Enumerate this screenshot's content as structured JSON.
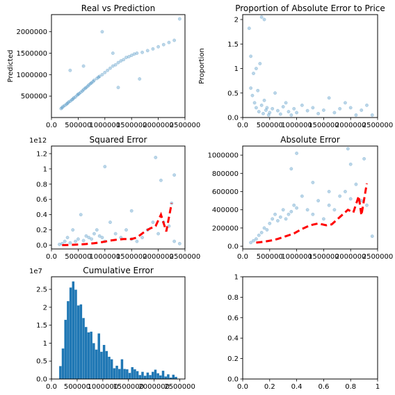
{
  "colors": {
    "scatter": "#1f77b4",
    "hist": "#1f77b4",
    "trend": "#ff0000"
  },
  "chart_data": [
    {
      "type": "scatter",
      "title": "Real vs Prediction",
      "xlabel": "",
      "ylabel": "Predicted",
      "xlim": [
        0,
        2500000
      ],
      "ylim": [
        0,
        2400000
      ],
      "xticks": [
        0,
        500000,
        1000000,
        1500000,
        2000000,
        2500000
      ],
      "yticks": [
        500000,
        1000000,
        1500000,
        2000000
      ],
      "x": [
        180000,
        200000,
        220000,
        250000,
        280000,
        300000,
        320000,
        350000,
        380000,
        400000,
        420000,
        450000,
        480000,
        500000,
        520000,
        550000,
        580000,
        600000,
        630000,
        650000,
        680000,
        700000,
        730000,
        750000,
        780000,
        800000,
        850000,
        880000,
        900000,
        950000,
        1000000,
        1050000,
        1100000,
        1150000,
        1200000,
        1250000,
        1300000,
        1350000,
        1400000,
        1450000,
        1500000,
        1550000,
        1600000,
        1700000,
        1800000,
        1900000,
        2000000,
        2100000,
        2200000,
        2300000,
        2400000,
        950000,
        1150000,
        350000,
        600000,
        1250000,
        1650000
      ],
      "y": [
        210000,
        230000,
        260000,
        280000,
        310000,
        330000,
        360000,
        380000,
        410000,
        430000,
        460000,
        480000,
        520000,
        540000,
        560000,
        590000,
        620000,
        650000,
        680000,
        700000,
        730000,
        760000,
        790000,
        810000,
        840000,
        870000,
        910000,
        940000,
        960000,
        1000000,
        1050000,
        1100000,
        1150000,
        1200000,
        1230000,
        1280000,
        1320000,
        1350000,
        1400000,
        1420000,
        1450000,
        1480000,
        1500000,
        1520000,
        1560000,
        1600000,
        1650000,
        1700000,
        1750000,
        1800000,
        2300000,
        2000000,
        1500000,
        1100000,
        1200000,
        700000,
        900000
      ]
    },
    {
      "type": "scatter",
      "title": "Proportion of Absolute Error to Price",
      "xlabel": "",
      "ylabel": "Proportion",
      "xlim": [
        0,
        2500000
      ],
      "ylim": [
        0,
        2.1
      ],
      "xticks": [
        0,
        500000,
        1000000,
        1500000,
        2000000,
        2500000
      ],
      "yticks": [
        0.0,
        0.5,
        1.0,
        1.5,
        2.0
      ],
      "x": [
        120000,
        150000,
        180000,
        200000,
        220000,
        250000,
        280000,
        300000,
        320000,
        350000,
        380000,
        400000,
        430000,
        450000,
        480000,
        500000,
        550000,
        600000,
        650000,
        700000,
        750000,
        800000,
        850000,
        900000,
        950000,
        1000000,
        1100000,
        1200000,
        1300000,
        1400000,
        1500000,
        1600000,
        1700000,
        1800000,
        1900000,
        2000000,
        2100000,
        2200000,
        2300000,
        2400000,
        150000,
        350000,
        400000,
        250000
      ],
      "y": [
        1.82,
        0.6,
        0.45,
        0.9,
        0.3,
        0.2,
        0.55,
        0.12,
        1.1,
        0.25,
        0.08,
        0.35,
        0.15,
        0.2,
        0.05,
        0.1,
        0.18,
        0.5,
        0.14,
        0.07,
        0.22,
        0.3,
        0.12,
        0.05,
        0.18,
        0.1,
        0.25,
        0.14,
        0.2,
        0.08,
        0.15,
        0.4,
        0.1,
        0.18,
        0.3,
        0.2,
        0.05,
        0.15,
        0.25,
        0.05,
        1.25,
        2.05,
        2.0,
        1.0
      ]
    },
    {
      "type": "scatter",
      "title": "Squared Error",
      "xlabel": "",
      "ylabel": "",
      "offset_text": "1e12",
      "xlim": [
        0,
        2500000
      ],
      "ylim": [
        -0.05,
        1.3
      ],
      "xticks": [
        0,
        500000,
        1000000,
        1500000,
        2000000,
        2500000
      ],
      "yticks": [
        0.0,
        0.2,
        0.4,
        0.6,
        0.8,
        1.0,
        1.2
      ],
      "x": [
        150000,
        200000,
        250000,
        300000,
        350000,
        400000,
        450000,
        500000,
        550000,
        600000,
        650000,
        700000,
        750000,
        800000,
        850000,
        900000,
        950000,
        1000000,
        1100000,
        1200000,
        1300000,
        1400000,
        1500000,
        1600000,
        1700000,
        1800000,
        1900000,
        2000000,
        2100000,
        2200000,
        2300000,
        2400000,
        1000000,
        1950000,
        2050000,
        2300000,
        2250000,
        1500000
      ],
      "y": [
        0.01,
        0.02,
        0.05,
        0.1,
        0.03,
        0.2,
        0.05,
        0.08,
        0.4,
        0.06,
        0.12,
        0.1,
        0.08,
        0.15,
        0.2,
        0.12,
        0.1,
        0.05,
        0.3,
        0.15,
        0.1,
        0.2,
        0.08,
        0.05,
        0.1,
        0.2,
        0.3,
        0.15,
        0.3,
        0.25,
        0.05,
        0.02,
        1.03,
        1.15,
        0.85,
        0.92,
        0.55,
        0.45
      ],
      "trend": {
        "x": [
          200000,
          400000,
          550000,
          650000,
          800000,
          950000,
          1100000,
          1200000,
          1350000,
          1500000,
          1600000,
          1750000,
          1850000,
          1950000,
          2050000,
          2150000,
          2250000
        ],
        "y": [
          0.0,
          0.005,
          0.01,
          0.015,
          0.025,
          0.04,
          0.06,
          0.07,
          0.08,
          0.08,
          0.1,
          0.18,
          0.22,
          0.25,
          0.4,
          0.18,
          0.55
        ]
      }
    },
    {
      "type": "scatter",
      "title": "Absolute Error",
      "xlabel": "",
      "ylabel": "",
      "xlim": [
        0,
        2500000
      ],
      "ylim": [
        -30000,
        1100000
      ],
      "xticks": [
        0,
        500000,
        1000000,
        1500000,
        2000000,
        2500000
      ],
      "yticks": [
        0,
        200000,
        400000,
        600000,
        800000,
        1000000
      ],
      "x": [
        150000,
        200000,
        250000,
        300000,
        350000,
        400000,
        450000,
        500000,
        550000,
        600000,
        650000,
        700000,
        750000,
        800000,
        850000,
        900000,
        950000,
        1000000,
        1100000,
        1200000,
        1300000,
        1400000,
        1500000,
        1600000,
        1700000,
        1800000,
        1900000,
        2000000,
        2100000,
        2200000,
        2300000,
        2400000,
        1000000,
        1950000,
        2000000,
        2250000,
        1300000,
        1600000,
        900000
      ],
      "y": [
        40000,
        60000,
        80000,
        120000,
        150000,
        200000,
        180000,
        250000,
        300000,
        350000,
        280000,
        320000,
        400000,
        300000,
        350000,
        380000,
        450000,
        420000,
        550000,
        400000,
        350000,
        500000,
        300000,
        450000,
        400000,
        550000,
        600000,
        520000,
        680000,
        500000,
        450000,
        110000,
        1020000,
        1070000,
        900000,
        960000,
        700000,
        600000,
        850000
      ],
      "trend": {
        "x": [
          250000,
          400000,
          550000,
          650000,
          800000,
          950000,
          1100000,
          1250000,
          1400000,
          1550000,
          1650000,
          1800000,
          1950000,
          2050000,
          2150000,
          2200000,
          2300000
        ],
        "y": [
          40000,
          50000,
          65000,
          80000,
          110000,
          140000,
          190000,
          230000,
          250000,
          230000,
          240000,
          320000,
          400000,
          370000,
          550000,
          340000,
          690000
        ]
      }
    },
    {
      "type": "bar",
      "title": "Cumulative Error",
      "xlabel": "",
      "ylabel": "",
      "offset_text": "1e7",
      "xlim": [
        0,
        2600000
      ],
      "ylim": [
        0,
        2.85
      ],
      "xticks": [
        0,
        500000,
        1000000,
        1500000,
        2000000,
        2500000
      ],
      "yticks": [
        0.0,
        0.5,
        1.0,
        1.5,
        2.0,
        2.5
      ],
      "bin_start": 150000,
      "bin_width": 50000,
      "values": [
        0.36,
        0.85,
        1.65,
        2.17,
        2.55,
        2.72,
        2.49,
        2.05,
        2.08,
        1.7,
        1.45,
        1.3,
        1.32,
        1.0,
        0.82,
        1.27,
        0.76,
        0.95,
        0.78,
        0.62,
        0.55,
        0.3,
        0.37,
        0.28,
        0.55,
        0.28,
        0.27,
        0.17,
        0.33,
        0.27,
        0.22,
        0.11,
        0.2,
        0.09,
        0.18,
        0.11,
        0.2,
        0.26,
        0.16,
        0.1,
        0.23,
        0.07,
        0.13,
        0.04,
        0.12,
        0.06
      ]
    },
    {
      "type": "scatter",
      "title": "",
      "xlabel": "",
      "ylabel": "",
      "xlim": [
        0,
        1
      ],
      "ylim": [
        0,
        1
      ],
      "xticks": [
        0.0,
        0.2,
        0.4,
        0.6,
        0.8,
        1.0
      ],
      "yticks": [
        0.0,
        0.2,
        0.4,
        0.6,
        0.8,
        1.0
      ],
      "x": [],
      "y": []
    }
  ]
}
